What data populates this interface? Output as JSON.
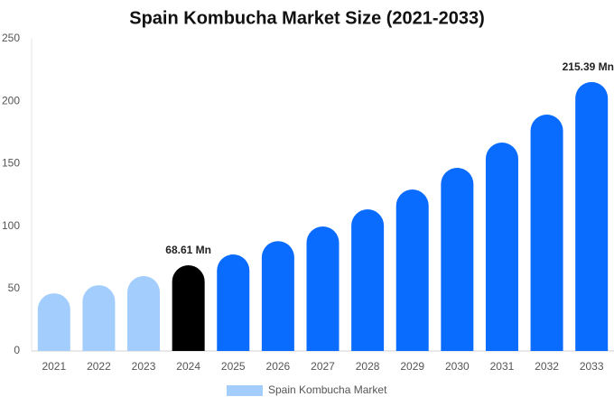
{
  "chart_data": {
    "type": "bar",
    "title": "Spain Kombucha Market Size (2021-2033)",
    "categories": [
      "2021",
      "2022",
      "2023",
      "2024",
      "2025",
      "2026",
      "2027",
      "2028",
      "2029",
      "2030",
      "2031",
      "2032",
      "2033"
    ],
    "series": [
      {
        "name": "Spain Kombucha Market",
        "color": "#a3cdfd",
        "values": [
          46.2,
          52.7,
          60,
          68.61,
          77.3,
          88,
          99.7,
          113.4,
          129.3,
          146.7,
          166.9,
          189.3,
          215.39
        ],
        "colors": [
          "#a3cdfd",
          "#a3cdfd",
          "#a3cdfd",
          "#000000",
          "#0a6cff",
          "#0a6cff",
          "#0a6cff",
          "#0a6cff",
          "#0a6cff",
          "#0a6cff",
          "#0a6cff",
          "#0a6cff",
          "#0a6cff"
        ],
        "value_labels": [
          null,
          null,
          null,
          "68.61 Mn",
          null,
          null,
          null,
          null,
          null,
          null,
          null,
          null,
          "215.39 Mn"
        ]
      }
    ],
    "ylim": [
      0,
      250
    ],
    "yticks": [
      0,
      50,
      100,
      150,
      200,
      250
    ],
    "grid": false,
    "legend": "bottom"
  }
}
